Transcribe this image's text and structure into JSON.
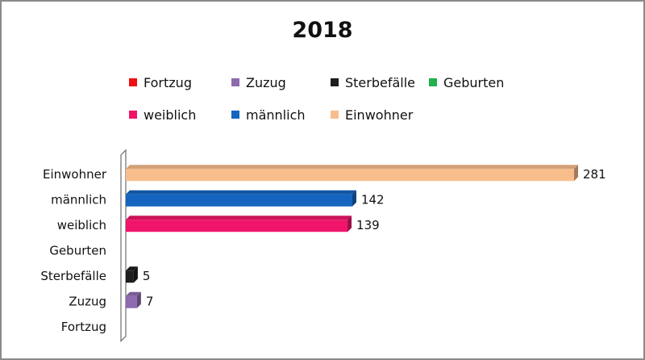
{
  "chart_data": {
    "type": "bar",
    "orientation": "horizontal",
    "title": "2018",
    "categories": [
      "Einwohner",
      "männlich",
      "weiblich",
      "Geburten",
      "Sterbefälle",
      "Zuzug",
      "Fortzug"
    ],
    "values": [
      281,
      142,
      139,
      null,
      5,
      7,
      null
    ],
    "colors": [
      "#f9bd8c",
      "#1565c0",
      "#f0156a",
      "#22b14c",
      "#1e1e1e",
      "#8e6bb0",
      "#ee1111"
    ],
    "legend": [
      {
        "label": "Fortzug",
        "color": "#ee1111"
      },
      {
        "label": "Zuzug",
        "color": "#8e6bb0"
      },
      {
        "label": "Sterbefälle",
        "color": "#1e1e1e"
      },
      {
        "label": "Geburten",
        "color": "#22b14c"
      },
      {
        "label": "weiblich",
        "color": "#f0156a"
      },
      {
        "label": "männlich",
        "color": "#1565c0"
      },
      {
        "label": "Einwohner",
        "color": "#f9bd8c"
      }
    ],
    "legend_position": "top",
    "xlim": [
      0,
      281
    ],
    "grid": false,
    "xlabel": "",
    "ylabel": ""
  }
}
